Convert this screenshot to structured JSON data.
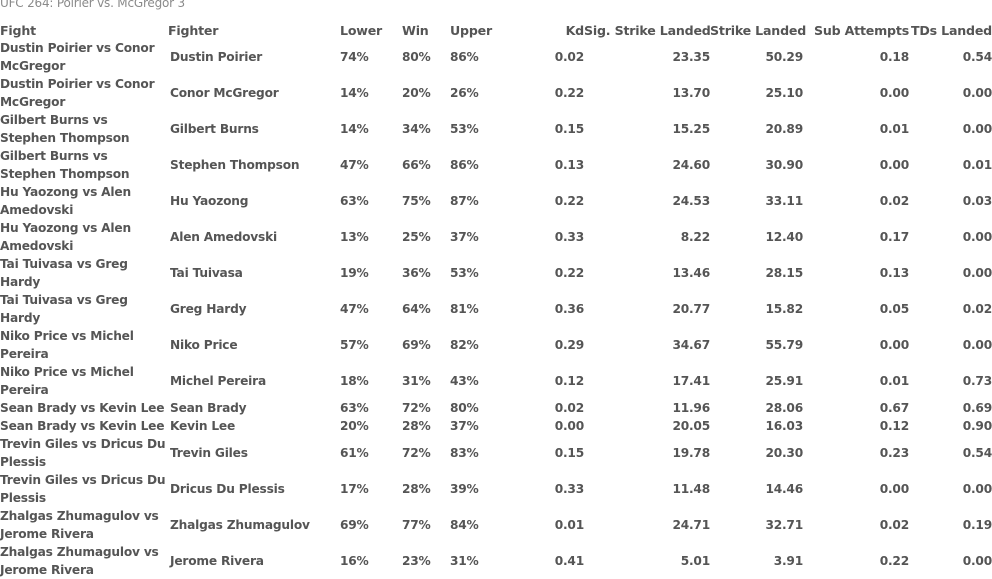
{
  "caption": "UFC 264: Poirier vs. McGregor 3",
  "headers": {
    "fight": "Fight",
    "fighter": "Fighter",
    "lower": "Lower",
    "win": "Win",
    "upper": "Upper",
    "kd": "Kd",
    "sig_strike": "Sig. Strike Landed",
    "strike": "Strike Landed",
    "sub": "Sub Attempts",
    "tds": "TDs Landed"
  },
  "rows": [
    {
      "fight": "Dustin Poirier vs Conor McGregor",
      "fighter": "Dustin Poirier",
      "lower": "74%",
      "win": "80%",
      "upper": "86%",
      "kd": "0.02",
      "sig": "23.35",
      "strike": "50.29",
      "sub": "0.18",
      "tds": "0.54"
    },
    {
      "fight": "Dustin Poirier vs Conor McGregor",
      "fighter": "Conor McGregor",
      "lower": "14%",
      "win": "20%",
      "upper": "26%",
      "kd": "0.22",
      "sig": "13.70",
      "strike": "25.10",
      "sub": "0.00",
      "tds": "0.00"
    },
    {
      "fight": "Gilbert Burns vs Stephen Thompson",
      "fighter": "Gilbert Burns",
      "lower": "14%",
      "win": "34%",
      "upper": "53%",
      "kd": "0.15",
      "sig": "15.25",
      "strike": "20.89",
      "sub": "0.01",
      "tds": "0.00"
    },
    {
      "fight": "Gilbert Burns vs Stephen Thompson",
      "fighter": "Stephen Thompson",
      "lower": "47%",
      "win": "66%",
      "upper": "86%",
      "kd": "0.13",
      "sig": "24.60",
      "strike": "30.90",
      "sub": "0.00",
      "tds": "0.01"
    },
    {
      "fight": "Hu Yaozong vs Alen Amedovski",
      "fighter": "Hu Yaozong",
      "lower": "63%",
      "win": "75%",
      "upper": "87%",
      "kd": "0.22",
      "sig": "24.53",
      "strike": "33.11",
      "sub": "0.02",
      "tds": "0.03"
    },
    {
      "fight": "Hu Yaozong vs Alen Amedovski",
      "fighter": "Alen Amedovski",
      "lower": "13%",
      "win": "25%",
      "upper": "37%",
      "kd": "0.33",
      "sig": "8.22",
      "strike": "12.40",
      "sub": "0.17",
      "tds": "0.00"
    },
    {
      "fight": "Tai Tuivasa vs Greg Hardy",
      "fighter": "Tai Tuivasa",
      "lower": "19%",
      "win": "36%",
      "upper": "53%",
      "kd": "0.22",
      "sig": "13.46",
      "strike": "28.15",
      "sub": "0.13",
      "tds": "0.00"
    },
    {
      "fight": "Tai Tuivasa vs Greg Hardy",
      "fighter": "Greg Hardy",
      "lower": "47%",
      "win": "64%",
      "upper": "81%",
      "kd": "0.36",
      "sig": "20.77",
      "strike": "15.82",
      "sub": "0.05",
      "tds": "0.02"
    },
    {
      "fight": "Niko Price vs Michel Pereira",
      "fighter": "Niko Price",
      "lower": "57%",
      "win": "69%",
      "upper": "82%",
      "kd": "0.29",
      "sig": "34.67",
      "strike": "55.79",
      "sub": "0.00",
      "tds": "0.00"
    },
    {
      "fight": "Niko Price vs Michel Pereira",
      "fighter": "Michel Pereira",
      "lower": "18%",
      "win": "31%",
      "upper": "43%",
      "kd": "0.12",
      "sig": "17.41",
      "strike": "25.91",
      "sub": "0.01",
      "tds": "0.73"
    },
    {
      "fight": "Sean Brady vs Kevin Lee",
      "fighter": "Sean Brady",
      "lower": "63%",
      "win": "72%",
      "upper": "80%",
      "kd": "0.02",
      "sig": "11.96",
      "strike": "28.06",
      "sub": "0.67",
      "tds": "0.69"
    },
    {
      "fight": "Sean Brady vs Kevin Lee",
      "fighter": "Kevin Lee",
      "lower": "20%",
      "win": "28%",
      "upper": "37%",
      "kd": "0.00",
      "sig": "20.05",
      "strike": "16.03",
      "sub": "0.12",
      "tds": "0.90"
    },
    {
      "fight": "Trevin Giles vs Dricus Du Plessis",
      "fighter": "Trevin Giles",
      "lower": "61%",
      "win": "72%",
      "upper": "83%",
      "kd": "0.15",
      "sig": "19.78",
      "strike": "20.30",
      "sub": "0.23",
      "tds": "0.54"
    },
    {
      "fight": "Trevin Giles vs Dricus Du Plessis",
      "fighter": "Dricus Du Plessis",
      "lower": "17%",
      "win": "28%",
      "upper": "39%",
      "kd": "0.33",
      "sig": "11.48",
      "strike": "14.46",
      "sub": "0.00",
      "tds": "0.00"
    },
    {
      "fight": "Zhalgas Zhumagulov vs Jerome Rivera",
      "fighter": "Zhalgas Zhumagulov",
      "lower": "69%",
      "win": "77%",
      "upper": "84%",
      "kd": "0.01",
      "sig": "24.71",
      "strike": "32.71",
      "sub": "0.02",
      "tds": "0.19"
    },
    {
      "fight": "Zhalgas Zhumagulov vs Jerome Rivera",
      "fighter": "Jerome Rivera",
      "lower": "16%",
      "win": "23%",
      "upper": "31%",
      "kd": "0.41",
      "sig": "5.01",
      "strike": "3.91",
      "sub": "0.22",
      "tds": "0.00"
    }
  ]
}
